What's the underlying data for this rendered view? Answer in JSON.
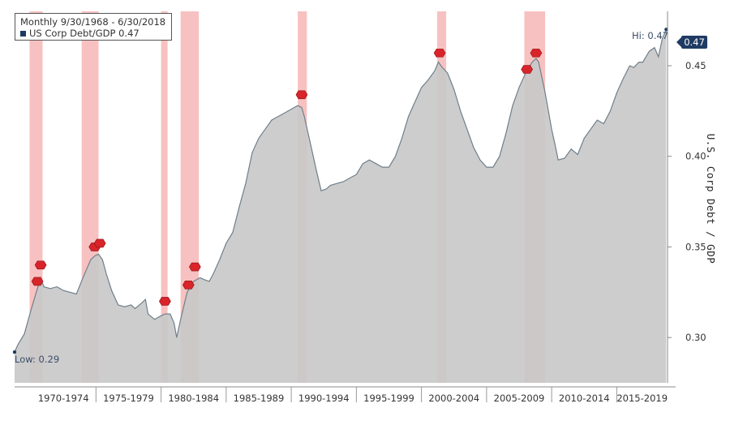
{
  "legend": {
    "line1": "Monthly 9/30/1968 - 6/30/2018",
    "line2": "US Corp Debt/GDP 0.47"
  },
  "colors": {
    "area": "#c9c9c9",
    "line": "#6f7f8a",
    "recession": "#f7b6b6",
    "marker": "#d8242a",
    "last_value_box": "#1f3b63"
  },
  "chart_data": {
    "type": "area",
    "title": "",
    "ylabel": "U.S. Corp Debt / GDP",
    "ylim": [
      0.275,
      0.48
    ],
    "xlim": [
      1968.75,
      2018.9
    ],
    "grid": false,
    "y_ticks": [
      0.3,
      0.35,
      0.4,
      0.45
    ],
    "y_tick_labels": [
      "0.30",
      "0.35",
      "0.40",
      "0.45"
    ],
    "x_tick_labels": [
      "1970-1974",
      "1975-1979",
      "1980-1984",
      "1985-1989",
      "1990-1994",
      "1995-1999",
      "2000-2004",
      "2005-2009",
      "2010-2014",
      "2015-2019"
    ],
    "x_ticks_years": [
      1970,
      1975,
      1980,
      1985,
      1990,
      1995,
      2000,
      2005,
      2010,
      2015
    ],
    "series": [
      {
        "name": "US Corp Debt/GDP",
        "points": [
          [
            1968.75,
            0.292
          ],
          [
            1969.0,
            0.296
          ],
          [
            1969.5,
            0.302
          ],
          [
            1970.0,
            0.315
          ],
          [
            1970.5,
            0.327
          ],
          [
            1970.75,
            0.333
          ],
          [
            1971.0,
            0.328
          ],
          [
            1971.5,
            0.327
          ],
          [
            1972.0,
            0.328
          ],
          [
            1972.5,
            0.326
          ],
          [
            1973.0,
            0.325
          ],
          [
            1973.5,
            0.324
          ],
          [
            1974.0,
            0.333
          ],
          [
            1974.3,
            0.338
          ],
          [
            1974.6,
            0.343
          ],
          [
            1974.9,
            0.345
          ],
          [
            1975.2,
            0.346
          ],
          [
            1975.5,
            0.343
          ],
          [
            1975.8,
            0.335
          ],
          [
            1976.2,
            0.326
          ],
          [
            1976.7,
            0.318
          ],
          [
            1977.2,
            0.317
          ],
          [
            1977.7,
            0.318
          ],
          [
            1978.0,
            0.316
          ],
          [
            1978.5,
            0.319
          ],
          [
            1978.8,
            0.321
          ],
          [
            1979.0,
            0.313
          ],
          [
            1979.5,
            0.31
          ],
          [
            1980.0,
            0.312
          ],
          [
            1980.3,
            0.313
          ],
          [
            1980.7,
            0.313
          ],
          [
            1981.0,
            0.308
          ],
          [
            1981.2,
            0.3
          ],
          [
            1981.5,
            0.31
          ],
          [
            1982.0,
            0.325
          ],
          [
            1982.5,
            0.331
          ],
          [
            1983.0,
            0.333
          ],
          [
            1983.3,
            0.332
          ],
          [
            1983.7,
            0.331
          ],
          [
            1984.0,
            0.335
          ],
          [
            1984.5,
            0.343
          ],
          [
            1985.0,
            0.352
          ],
          [
            1985.5,
            0.358
          ],
          [
            1986.0,
            0.372
          ],
          [
            1986.5,
            0.385
          ],
          [
            1987.0,
            0.402
          ],
          [
            1987.5,
            0.41
          ],
          [
            1988.0,
            0.415
          ],
          [
            1988.5,
            0.42
          ],
          [
            1989.0,
            0.422
          ],
          [
            1989.5,
            0.424
          ],
          [
            1990.0,
            0.426
          ],
          [
            1990.5,
            0.428
          ],
          [
            1990.8,
            0.427
          ],
          [
            1991.0,
            0.422
          ],
          [
            1991.5,
            0.406
          ],
          [
            1992.0,
            0.39
          ],
          [
            1992.3,
            0.381
          ],
          [
            1992.7,
            0.382
          ],
          [
            1993.0,
            0.384
          ],
          [
            1993.5,
            0.385
          ],
          [
            1994.0,
            0.386
          ],
          [
            1994.5,
            0.388
          ],
          [
            1995.0,
            0.39
          ],
          [
            1995.5,
            0.396
          ],
          [
            1996.0,
            0.398
          ],
          [
            1996.5,
            0.396
          ],
          [
            1997.0,
            0.394
          ],
          [
            1997.5,
            0.394
          ],
          [
            1998.0,
            0.4
          ],
          [
            1998.5,
            0.41
          ],
          [
            1999.0,
            0.422
          ],
          [
            1999.5,
            0.43
          ],
          [
            2000.0,
            0.438
          ],
          [
            2000.5,
            0.442
          ],
          [
            2001.0,
            0.447
          ],
          [
            2001.3,
            0.452
          ],
          [
            2001.6,
            0.449
          ],
          [
            2002.0,
            0.446
          ],
          [
            2002.5,
            0.437
          ],
          [
            2003.0,
            0.425
          ],
          [
            2003.5,
            0.415
          ],
          [
            2004.0,
            0.405
          ],
          [
            2004.5,
            0.398
          ],
          [
            2005.0,
            0.394
          ],
          [
            2005.5,
            0.394
          ],
          [
            2006.0,
            0.4
          ],
          [
            2006.5,
            0.413
          ],
          [
            2007.0,
            0.428
          ],
          [
            2007.5,
            0.438
          ],
          [
            2008.0,
            0.446
          ],
          [
            2008.5,
            0.452
          ],
          [
            2008.8,
            0.454
          ],
          [
            2009.0,
            0.452
          ],
          [
            2009.5,
            0.435
          ],
          [
            2010.0,
            0.415
          ],
          [
            2010.3,
            0.405
          ],
          [
            2010.5,
            0.398
          ],
          [
            2011.0,
            0.399
          ],
          [
            2011.5,
            0.404
          ],
          [
            2012.0,
            0.401
          ],
          [
            2012.5,
            0.41
          ],
          [
            2013.0,
            0.415
          ],
          [
            2013.5,
            0.42
          ],
          [
            2014.0,
            0.418
          ],
          [
            2014.5,
            0.425
          ],
          [
            2015.0,
            0.435
          ],
          [
            2015.5,
            0.443
          ],
          [
            2016.0,
            0.45
          ],
          [
            2016.3,
            0.449
          ],
          [
            2016.7,
            0.452
          ],
          [
            2017.0,
            0.452
          ],
          [
            2017.5,
            0.458
          ],
          [
            2017.9,
            0.46
          ],
          [
            2018.2,
            0.455
          ],
          [
            2018.5,
            0.465
          ],
          [
            2018.8,
            0.47
          ]
        ]
      }
    ],
    "recessions": [
      [
        1969.9,
        1970.9
      ],
      [
        1973.9,
        1975.2
      ],
      [
        1980.0,
        1980.5
      ],
      [
        1981.5,
        1982.9
      ],
      [
        1990.5,
        1991.2
      ],
      [
        2001.2,
        2001.9
      ],
      [
        2007.9,
        2009.5
      ]
    ],
    "markers": [
      [
        1970.5,
        0.331
      ],
      [
        1970.75,
        0.34
      ],
      [
        1974.9,
        0.35
      ],
      [
        1975.3,
        0.352
      ],
      [
        1980.3,
        0.32
      ],
      [
        1982.1,
        0.329
      ],
      [
        1982.6,
        0.339
      ],
      [
        1990.8,
        0.434
      ],
      [
        2001.4,
        0.457
      ],
      [
        2008.1,
        0.448
      ],
      [
        2008.8,
        0.457
      ]
    ],
    "annotations": {
      "low": "Low: 0.29",
      "high": "Hi: 0.47",
      "last_value": "0.47"
    }
  }
}
